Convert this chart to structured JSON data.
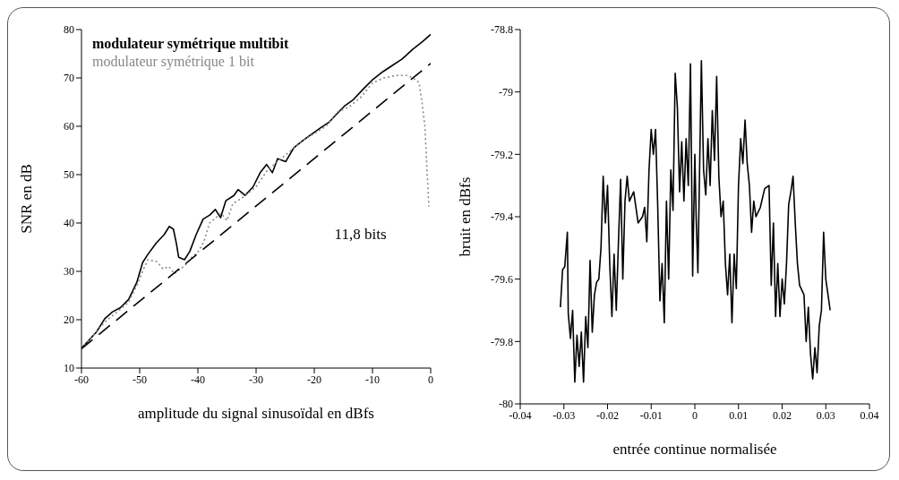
{
  "chart_data": [
    {
      "type": "line",
      "xlabel": "amplitude du signal sinusoïdal en dBfs",
      "ylabel": "SNR en dB",
      "xlim": [
        -60,
        0
      ],
      "ylim": [
        10,
        80
      ],
      "xticks": [
        -60,
        -50,
        -40,
        -30,
        -20,
        -10,
        0
      ],
      "yticks": [
        10,
        20,
        30,
        40,
        50,
        60,
        70,
        80
      ],
      "legend": "top left",
      "annotations": [
        "11,8 bits"
      ],
      "series": [
        {
          "name": "modulateur symétrique multibit",
          "color": "#000000",
          "x": [
            -60,
            -57.4,
            -56,
            -54.7,
            -53.3,
            -51.9,
            -50.5,
            -49.5,
            -48.6,
            -47.2,
            -45.8,
            -44.9,
            -44.2,
            -43.7,
            -43.3,
            -42.3,
            -41.4,
            -40.3,
            -39.1,
            -38,
            -37,
            -36.1,
            -35.2,
            -33.8,
            -33.1,
            -31.9,
            -30.5,
            -29.3,
            -28.2,
            -27.2,
            -26.3,
            -24.9,
            -23.5,
            -21.7,
            -20.3,
            -18.9,
            -17.5,
            -16.1,
            -14.7,
            -13.3,
            -11.5,
            -10.1,
            -8.2,
            -6.8,
            -4.9,
            -3.1,
            -1.3,
            0
          ],
          "values": [
            14.1,
            17.5,
            20.2,
            21.6,
            22.5,
            24.2,
            27.7,
            31.8,
            33.5,
            35.8,
            37.6,
            39.3,
            38.7,
            35.8,
            32.9,
            32.4,
            34.1,
            37.6,
            40.8,
            41.6,
            42.8,
            41.1,
            44.6,
            45.7,
            46.9,
            45.7,
            47.5,
            50.4,
            52.1,
            50.4,
            53.3,
            52.7,
            55.6,
            57.3,
            58.5,
            59.7,
            60.8,
            62.6,
            64.3,
            65.5,
            67.8,
            69.5,
            71.3,
            72.4,
            73.9,
            75.9,
            77.6,
            79
          ]
        },
        {
          "name": "modulateur symétrique 1 bit",
          "color": "#888888",
          "line_style": "dotted",
          "x": [
            -60,
            -56,
            -52,
            -50.5,
            -49.5,
            -48.6,
            -47,
            -46,
            -45,
            -44,
            -43,
            -42,
            -41,
            -40,
            -39,
            -38,
            -37,
            -36,
            -35,
            -34,
            -32,
            -30,
            -28,
            -26,
            -24,
            -22,
            -20,
            -18,
            -16,
            -14,
            -12,
            -10,
            -8,
            -6,
            -4,
            -3,
            -2,
            -1.5,
            -1,
            -0.6,
            -0.3
          ],
          "values": [
            14,
            19.5,
            23.5,
            27,
            30,
            32.4,
            32,
            30.5,
            31,
            29.5,
            30.5,
            31.5,
            33,
            34,
            36,
            40,
            41,
            42,
            40.5,
            44,
            45.5,
            47.5,
            51,
            53,
            55,
            57,
            58.5,
            60,
            63,
            64,
            66,
            69,
            70,
            70.5,
            70.5,
            70,
            69,
            65,
            60,
            50,
            43.4
          ]
        },
        {
          "color": "#000000",
          "line_style": "dashed",
          "x": [
            -60,
            0
          ],
          "values": [
            14,
            73
          ]
        }
      ]
    },
    {
      "type": "line",
      "xlabel": "entrée continue normalisée",
      "ylabel": "bruit en dBfs",
      "xlim": [
        -0.04,
        0.04
      ],
      "ylim": [
        -80,
        -78.8
      ],
      "xticks": [
        -0.04,
        -0.03,
        -0.02,
        -0.01,
        0,
        0.01,
        0.02,
        0.03,
        0.04
      ],
      "yticks": [
        -80,
        -79.8,
        -79.6,
        -79.4,
        -79.2,
        -79,
        -78.8
      ],
      "series": [
        {
          "color": "#000000",
          "x": [
            -0.0308,
            -0.0303,
            -0.0298,
            -0.0292,
            -0.029,
            -0.0285,
            -0.028,
            -0.0275,
            -0.027,
            -0.0265,
            -0.026,
            -0.0255,
            -0.025,
            -0.0245,
            -0.024,
            -0.0235,
            -0.023,
            -0.0225,
            -0.022,
            -0.0215,
            -0.021,
            -0.0205,
            -0.02,
            -0.0195,
            -0.019,
            -0.0185,
            -0.018,
            -0.0175,
            -0.017,
            -0.0165,
            -0.016,
            -0.0155,
            -0.015,
            -0.014,
            -0.013,
            -0.012,
            -0.0115,
            -0.011,
            -0.0105,
            -0.01,
            -0.0095,
            -0.009,
            -0.0085,
            -0.008,
            -0.0075,
            -0.007,
            -0.0065,
            -0.006,
            -0.0055,
            -0.005,
            -0.0045,
            -0.004,
            -0.0035,
            -0.003,
            -0.0025,
            -0.002,
            -0.0015,
            -0.001,
            -0.0005,
            0,
            0.0003,
            0.0007,
            0.0015,
            0.002,
            0.0025,
            0.003,
            0.0035,
            0.004,
            0.0045,
            0.005,
            0.0055,
            0.006,
            0.0065,
            0.007,
            0.0075,
            0.008,
            0.0085,
            0.009,
            0.0095,
            0.01,
            0.0105,
            0.011,
            0.0115,
            0.012,
            0.0125,
            0.013,
            0.0135,
            0.014,
            0.015,
            0.016,
            0.017,
            0.0175,
            0.018,
            0.0185,
            0.019,
            0.0195,
            0.02,
            0.0205,
            0.021,
            0.0215,
            0.022,
            0.0225,
            0.023,
            0.0235,
            0.024,
            0.025,
            0.0255,
            0.026,
            0.0265,
            0.027,
            0.0275,
            0.028,
            0.0285,
            0.029,
            0.0295,
            0.03,
            0.0305,
            0.031
          ],
          "values": [
            -79.69,
            -79.57,
            -79.56,
            -79.45,
            -79.71,
            -79.79,
            -79.7,
            -79.93,
            -79.78,
            -79.88,
            -79.77,
            -79.93,
            -79.72,
            -79.82,
            -79.54,
            -79.77,
            -79.65,
            -79.61,
            -79.6,
            -79.5,
            -79.27,
            -79.42,
            -79.3,
            -79.55,
            -79.72,
            -79.52,
            -79.7,
            -79.48,
            -79.28,
            -79.6,
            -79.35,
            -79.27,
            -79.35,
            -79.32,
            -79.42,
            -79.4,
            -79.37,
            -79.48,
            -79.25,
            -79.12,
            -79.2,
            -79.12,
            -79.37,
            -79.67,
            -79.55,
            -79.74,
            -79.35,
            -79.6,
            -79.25,
            -79.38,
            -78.94,
            -79.05,
            -79.32,
            -79.16,
            -79.35,
            -79.15,
            -79.3,
            -78.91,
            -79.59,
            -79.2,
            -79.4,
            -79.58,
            -78.9,
            -79.25,
            -79.33,
            -79.15,
            -79.3,
            -79.06,
            -79.22,
            -78.95,
            -79.27,
            -79.4,
            -79.35,
            -79.55,
            -79.65,
            -79.52,
            -79.74,
            -79.52,
            -79.63,
            -79.3,
            -79.15,
            -79.23,
            -79.09,
            -79.23,
            -79.3,
            -79.45,
            -79.35,
            -79.4,
            -79.37,
            -79.31,
            -79.3,
            -79.62,
            -79.42,
            -79.72,
            -79.55,
            -79.72,
            -79.6,
            -79.68,
            -79.55,
            -79.36,
            -79.32,
            -79.27,
            -79.42,
            -79.55,
            -79.62,
            -79.65,
            -79.8,
            -79.69,
            -79.84,
            -79.92,
            -79.82,
            -79.9,
            -79.75,
            -79.7,
            -79.45,
            -79.6,
            -79.65,
            -79.7
          ]
        }
      ]
    }
  ]
}
